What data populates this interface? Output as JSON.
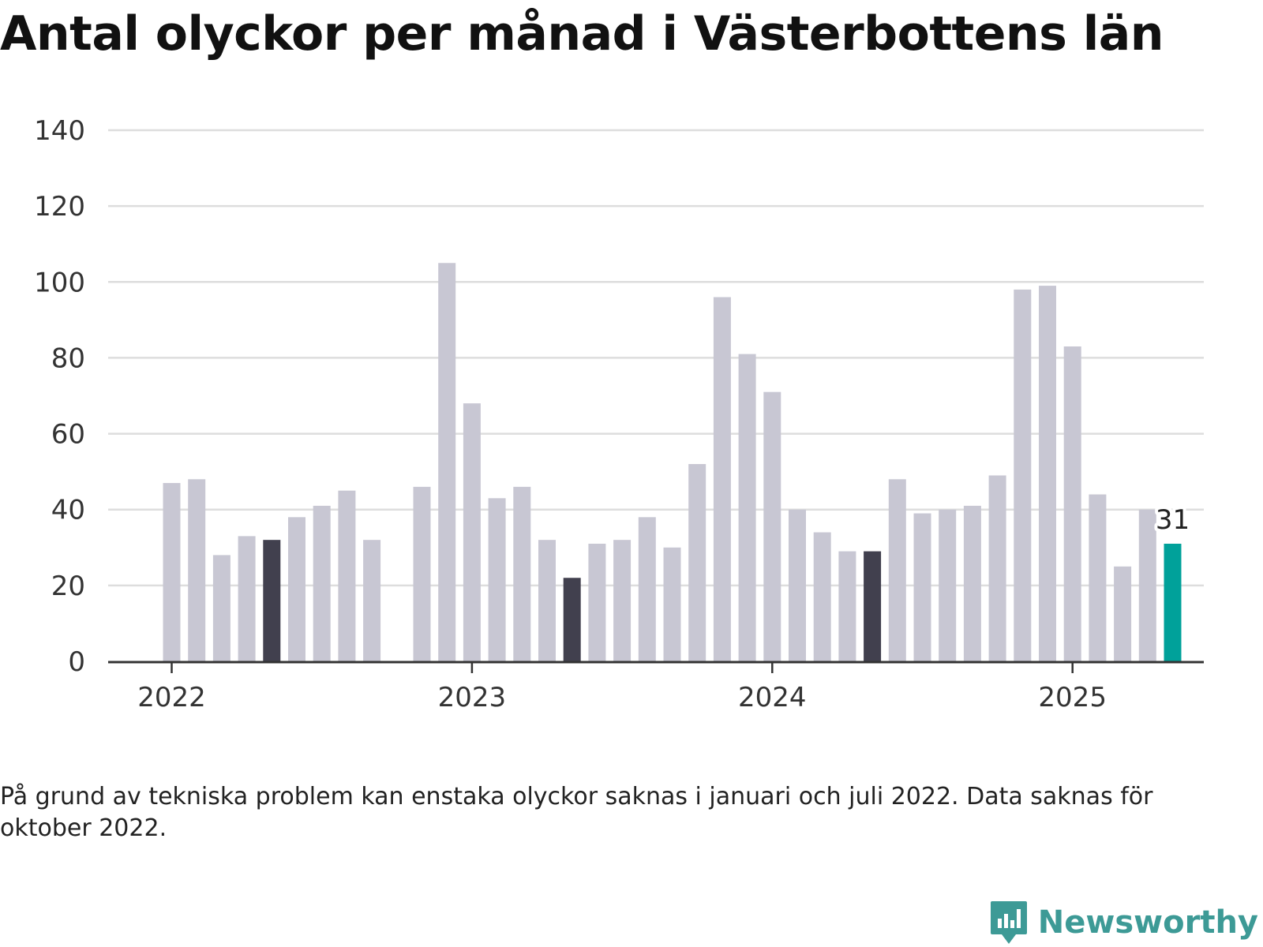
{
  "title": "Antal olyckor per månad i Västerbottens län",
  "footnote": "På grund av tekniska problem kan enstaka olyckor saknas i januari och juli 2022. Data saknas för oktober 2022.",
  "brand": {
    "name": "Newsworthy",
    "icon": "newsworthy-logo-icon",
    "color": "#3d9a96"
  },
  "colors": {
    "bar": "#c8c7d3",
    "bar_dark": "#41404e",
    "bar_highlight": "#00a19a",
    "grid": "#dddddd",
    "axis": "#333333"
  },
  "chart_data": {
    "type": "bar",
    "title": "Antal olyckor per månad i Västerbottens län",
    "xlabel": "",
    "ylabel": "",
    "ylim": [
      0,
      140
    ],
    "yticks": [
      0,
      20,
      40,
      60,
      80,
      100,
      120,
      140
    ],
    "xticks": [
      "2022",
      "2023",
      "2024",
      "2025"
    ],
    "grid": true,
    "categories": [
      "2022-01",
      "2022-02",
      "2022-03",
      "2022-04",
      "2022-05",
      "2022-06",
      "2022-07",
      "2022-08",
      "2022-09",
      "2022-10",
      "2022-11",
      "2022-12",
      "2023-01",
      "2023-02",
      "2023-03",
      "2023-04",
      "2023-05",
      "2023-06",
      "2023-07",
      "2023-08",
      "2023-09",
      "2023-10",
      "2023-11",
      "2023-12",
      "2024-01",
      "2024-02",
      "2024-03",
      "2024-04",
      "2024-05",
      "2024-06",
      "2024-07",
      "2024-08",
      "2024-09",
      "2024-10",
      "2024-11",
      "2024-12",
      "2025-01",
      "2025-02",
      "2025-03",
      "2025-04",
      "2025-05"
    ],
    "values": [
      47,
      48,
      28,
      33,
      32,
      38,
      41,
      45,
      32,
      null,
      46,
      105,
      68,
      43,
      46,
      32,
      22,
      31,
      32,
      38,
      30,
      52,
      96,
      81,
      71,
      40,
      34,
      29,
      29,
      48,
      39,
      40,
      41,
      49,
      98,
      99,
      83,
      44,
      25,
      40,
      31
    ],
    "dark_months": [
      "2022-05",
      "2023-05",
      "2024-05"
    ],
    "highlight_month": "2025-05",
    "data_labels": [
      {
        "category": "2025-05",
        "text": "31"
      }
    ]
  }
}
